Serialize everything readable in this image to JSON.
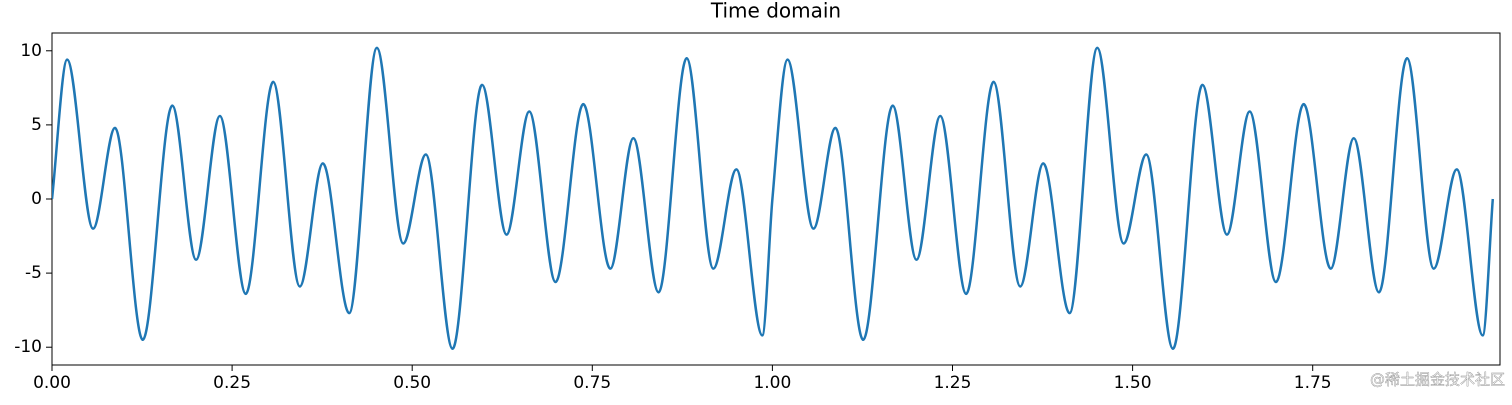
{
  "chart_data": {
    "type": "line",
    "title": "Time domain",
    "x": [
      0,
      0.021,
      0.057,
      0.0875,
      0.126,
      0.167,
      0.2,
      0.233,
      0.269,
      0.307,
      0.344,
      0.376,
      0.4125,
      0.451,
      0.4875,
      0.519,
      0.556,
      0.597,
      0.631,
      0.6625,
      0.699,
      0.7375,
      0.775,
      0.807,
      0.842,
      0.881,
      0.918,
      0.95,
      0.986,
      1.0,
      1.021,
      1.057,
      1.0875,
      1.126,
      1.167,
      1.2,
      1.233,
      1.269,
      1.307,
      1.344,
      1.376,
      1.4125,
      1.451,
      1.4875,
      1.519,
      1.556,
      1.597,
      1.631,
      1.6625,
      1.699,
      1.7375,
      1.775,
      1.807,
      1.842,
      1.881,
      1.918,
      1.95,
      1.986,
      2.0
    ],
    "series": [
      {
        "color": "#1f77b4",
        "values": [
          0,
          9.4,
          -2.0,
          4.8,
          -9.5,
          6.3,
          -4.1,
          5.6,
          -6.4,
          7.9,
          -5.9,
          2.4,
          -7.7,
          10.2,
          -3.0,
          3.0,
          -10.1,
          7.7,
          -2.4,
          5.9,
          -5.6,
          6.4,
          -4.7,
          4.1,
          -6.3,
          9.5,
          -4.7,
          2.0,
          -9.2,
          0,
          9.4,
          -2.0,
          4.8,
          -9.5,
          6.3,
          -4.1,
          5.6,
          -6.4,
          7.9,
          -5.9,
          2.4,
          -7.7,
          10.2,
          -3.0,
          3.0,
          -10.1,
          7.7,
          -2.4,
          5.9,
          -5.6,
          6.4,
          -4.7,
          4.1,
          -6.3,
          9.5,
          -4.7,
          2.0,
          -9.2,
          0
        ]
      }
    ],
    "xlim": [
      0,
      2.01
    ],
    "ylim": [
      -11.2,
      11.2
    ],
    "xticks": [
      {
        "value": 0,
        "label": "0.00"
      },
      {
        "value": 0.25,
        "label": "0.25"
      },
      {
        "value": 0.5,
        "label": "0.50"
      },
      {
        "value": 0.75,
        "label": "0.75"
      },
      {
        "value": 1,
        "label": "1.00"
      },
      {
        "value": 1.25,
        "label": "1.25"
      },
      {
        "value": 1.5,
        "label": "1.50"
      },
      {
        "value": 1.75,
        "label": "1.75"
      }
    ],
    "yticks": [
      -10,
      -5,
      0,
      5,
      10
    ],
    "watermark": "@稀土掘金技术社区"
  }
}
